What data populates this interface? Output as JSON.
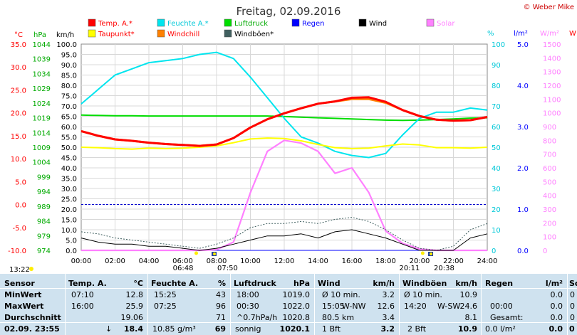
{
  "title": "Freitag, 02.09.2016",
  "copyright": "© Weber Mike",
  "axis_units": {
    "temp": "°C",
    "pressure": "hPa",
    "wind": "km/h",
    "humidity": "%",
    "rain": "l/m²",
    "solar": "W/m²",
    "far_right": "W"
  },
  "colors": {
    "temp": "#ff0000",
    "dew": "#ffff00",
    "humidity": "#00e5ee",
    "windchill": "#ff8000",
    "pressure": "#00dd00",
    "gust": "#406060",
    "rain": "#0000ff",
    "wind": "#000000",
    "solar": "#ff80ff"
  },
  "legend": [
    {
      "label": "Temp. A.*",
      "color": "#ff0000",
      "text_color": "#ff0000"
    },
    {
      "label": "Taupunkt*",
      "color": "#ffff00",
      "text_color": "#ff0000"
    },
    {
      "label": "Feuchte A.*",
      "color": "#00e5ee",
      "text_color": "#00c8d8"
    },
    {
      "label": "Windchill",
      "color": "#ff8000",
      "text_color": "#ff0000"
    },
    {
      "label": "Luftdruck",
      "color": "#00dd00",
      "text_color": "#00aa00"
    },
    {
      "label": "Windböen*",
      "color": "#406060",
      "text_color": "#000000"
    },
    {
      "label": "Regen",
      "color": "#0000ff",
      "text_color": "#0000ff"
    },
    {
      "label": "Wind",
      "color": "#000000",
      "text_color": "#000000"
    },
    {
      "label": "Solar",
      "color": "#ff80ff",
      "text_color": "#ff80ff"
    }
  ],
  "ticks": {
    "temp": [
      "35.0",
      "30.0",
      "25.0",
      "20.0",
      "15.0",
      "10.0",
      "5.0",
      "0.0",
      "-5.0",
      "-10.0"
    ],
    "pressure": [
      "1044",
      "1039",
      "1034",
      "1029",
      "1024",
      "1019",
      "1014",
      "1009",
      "1004",
      "999",
      "994",
      "989",
      "984",
      "979",
      "974"
    ],
    "wind": [
      "100.0",
      "95.0",
      "90.0",
      "85.0",
      "80.0",
      "75.0",
      "70.0",
      "65.0",
      "60.0",
      "55.0",
      "50.0",
      "45.0",
      "40.0",
      "35.0",
      "30.0",
      "25.0",
      "20.0",
      "15.0",
      "10.0",
      "5.0",
      "0.0"
    ],
    "humidity": [
      "100",
      "90",
      "80",
      "70",
      "60",
      "50",
      "40",
      "30",
      "20",
      "10",
      "0"
    ],
    "rain": [
      "5.0",
      "4.0",
      "3.0",
      "2.0",
      "1.0",
      "0.0"
    ],
    "solar": [
      "1500",
      "1400",
      "1300",
      "1200",
      "1100",
      "1000",
      "900",
      "800",
      "700",
      "600",
      "500",
      "400",
      "300",
      "200",
      "100",
      "0"
    ],
    "time": [
      "00:00",
      "02:00",
      "04:00",
      "06:00",
      "08:00",
      "10:00",
      "12:00",
      "14:00",
      "16:00",
      "18:00",
      "20:00",
      "22:00",
      "24:00"
    ]
  },
  "sun_times": {
    "now": "13:22",
    "dawn": "06:48",
    "sunrise": "07:50",
    "sunset": "20:11",
    "dusk": "20:38"
  },
  "chart_data": {
    "type": "line",
    "title": "Freitag, 02.09.2016",
    "x": [
      "00:00",
      "01:00",
      "02:00",
      "03:00",
      "04:00",
      "05:00",
      "06:00",
      "07:00",
      "08:00",
      "09:00",
      "10:00",
      "11:00",
      "12:00",
      "13:00",
      "14:00",
      "15:00",
      "16:00",
      "17:00",
      "18:00",
      "19:00",
      "20:00",
      "21:00",
      "22:00",
      "23:00",
      "24:00"
    ],
    "xlim": [
      "00:00",
      "24:00"
    ],
    "series": [
      {
        "name": "Temp. A.*",
        "axis": "temp",
        "unit": "°C",
        "values": [
          16.0,
          15.0,
          14.2,
          13.9,
          13.5,
          13.2,
          13.0,
          12.8,
          13.1,
          14.5,
          16.8,
          18.6,
          19.9,
          21.0,
          22.0,
          22.5,
          23.3,
          23.4,
          22.4,
          20.6,
          19.3,
          18.5,
          18.3,
          18.4,
          19.1
        ]
      },
      {
        "name": "Taupunkt*",
        "axis": "temp",
        "unit": "°C",
        "values": [
          12.5,
          12.4,
          12.2,
          12.1,
          12.3,
          12.2,
          12.3,
          12.5,
          12.8,
          13.5,
          14.3,
          14.5,
          14.4,
          13.9,
          13.1,
          12.4,
          12.2,
          12.3,
          12.8,
          13.2,
          13.0,
          12.4,
          12.4,
          12.3,
          12.5
        ]
      },
      {
        "name": "Windchill",
        "axis": "temp",
        "unit": "°C",
        "values": [
          16.0,
          15.0,
          14.2,
          13.9,
          13.5,
          13.2,
          13.0,
          12.8,
          13.1,
          14.5,
          16.8,
          18.6,
          19.9,
          21.0,
          22.0,
          22.5,
          23.0,
          23.0,
          22.2,
          20.6,
          19.3,
          18.5,
          18.3,
          18.4,
          19.1
        ]
      },
      {
        "name": "Feuchte A.*",
        "axis": "humidity",
        "unit": "%",
        "values": [
          71,
          78,
          85,
          88,
          91,
          92,
          93,
          95,
          96,
          93,
          84,
          74,
          64,
          55,
          52,
          48,
          46,
          45,
          47,
          56,
          64,
          67,
          67,
          69,
          68
        ]
      },
      {
        "name": "Luftdruck",
        "axis": "pressure",
        "unit": "hPa",
        "values": [
          1019.9,
          1019.8,
          1019.7,
          1019.7,
          1019.6,
          1019.6,
          1019.6,
          1019.6,
          1019.6,
          1019.6,
          1019.6,
          1019.6,
          1019.4,
          1019.2,
          1019.0,
          1018.8,
          1018.6,
          1018.4,
          1018.2,
          1018.1,
          1018.2,
          1018.4,
          1018.6,
          1018.9,
          1019.0
        ]
      },
      {
        "name": "Wind",
        "axis": "wind",
        "unit": "km/h",
        "values": [
          6,
          4,
          3,
          3,
          2,
          2,
          1,
          0,
          1,
          3,
          5,
          7,
          7,
          8,
          6,
          9,
          10,
          8,
          6,
          3,
          0,
          0,
          0,
          6,
          8
        ]
      },
      {
        "name": "Windböen*",
        "axis": "wind",
        "unit": "km/h",
        "values": [
          9,
          8,
          6,
          5,
          4,
          3,
          2,
          1,
          3,
          6,
          11,
          13,
          13,
          14,
          13,
          15,
          16,
          14,
          10,
          5,
          1,
          0,
          2,
          10,
          13
        ]
      },
      {
        "name": "Solar",
        "axis": "solar",
        "unit": "W/m²",
        "values": [
          0,
          0,
          0,
          0,
          0,
          0,
          0,
          0,
          5,
          60,
          420,
          720,
          800,
          780,
          720,
          560,
          600,
          420,
          140,
          50,
          10,
          0,
          0,
          0,
          0
        ]
      },
      {
        "name": "Regen",
        "axis": "rain",
        "unit": "l/m²",
        "values": [
          0,
          0,
          0,
          0,
          0,
          0,
          0,
          0,
          0,
          0,
          0,
          0,
          0,
          0,
          0,
          0,
          0,
          0,
          0,
          0,
          0,
          0,
          0,
          0,
          0
        ]
      }
    ],
    "axes": {
      "temp": {
        "label": "°C",
        "ylim": [
          -10,
          35
        ]
      },
      "pressure": {
        "label": "hPa",
        "ylim": [
          974,
          1044
        ]
      },
      "wind": {
        "label": "km/h",
        "ylim": [
          0,
          100
        ]
      },
      "humidity": {
        "label": "%",
        "ylim": [
          0,
          100
        ]
      },
      "rain": {
        "label": "l/m²",
        "ylim": [
          0,
          5
        ]
      },
      "solar": {
        "label": "W/m²",
        "ylim": [
          0,
          1500
        ]
      }
    },
    "grid": true,
    "legend_position": "top"
  },
  "table": {
    "sensor": {
      "header": "Sensor",
      "rows": [
        "MinWert",
        "MaxWert",
        "Durchschnitt"
      ],
      "footer": "02.09. 23:55"
    },
    "temp": {
      "header": "Temp. A.",
      "unit": "°C",
      "rows": [
        [
          "07:10",
          "12.8"
        ],
        [
          "16:00",
          "25.9"
        ],
        [
          "",
          "19.06"
        ]
      ],
      "footer_arrow": "↓",
      "footer": "18.4"
    },
    "humidity": {
      "header": "Feuchte A.",
      "unit": "%",
      "rows": [
        [
          "15:25",
          "43"
        ],
        [
          "07:25",
          "96"
        ],
        [
          "",
          "71"
        ]
      ],
      "footer_left": "10.85 g/m³",
      "footer": "69"
    },
    "pressure": {
      "header": "Luftdruck",
      "unit": "hPa",
      "rows": [
        [
          "18:00",
          "1019.0"
        ],
        [
          "00:30",
          "1022.0"
        ],
        [
          "^0.7hPa/h",
          "1020.8"
        ]
      ],
      "footer_left": "sonnig",
      "footer": "1020.1"
    },
    "wind": {
      "header": "Wind",
      "unit": "km/h",
      "rows": [
        [
          "Ø 10 min.",
          "",
          "3.2"
        ],
        [
          "15:05",
          "W-NW",
          "12.6"
        ],
        [
          "80.5 km",
          "",
          "3.4"
        ]
      ],
      "footer_left": "1 Bft",
      "footer": "3.2"
    },
    "gust": {
      "header": "Windböen",
      "unit": "km/h",
      "rows": [
        [
          "Ø 10 min.",
          "",
          "10.9"
        ],
        [
          "14:20",
          "W-SW",
          "24.6"
        ],
        [
          "",
          "",
          "8.1"
        ]
      ],
      "footer_left": "2 Bft",
      "footer": "10.9"
    },
    "rain": {
      "header": "Regen",
      "unit": "l/m²",
      "rows": [
        [
          "",
          "0.0"
        ],
        [
          "00:00",
          "0.0"
        ],
        [
          "Gesamt:",
          "0.0"
        ]
      ],
      "footer_left": "0.0 l/m²",
      "footer": "0.0"
    },
    "far": {
      "header": "So",
      "rows": [
        "0",
        "0",
        "0"
      ],
      "footer": "0"
    }
  }
}
